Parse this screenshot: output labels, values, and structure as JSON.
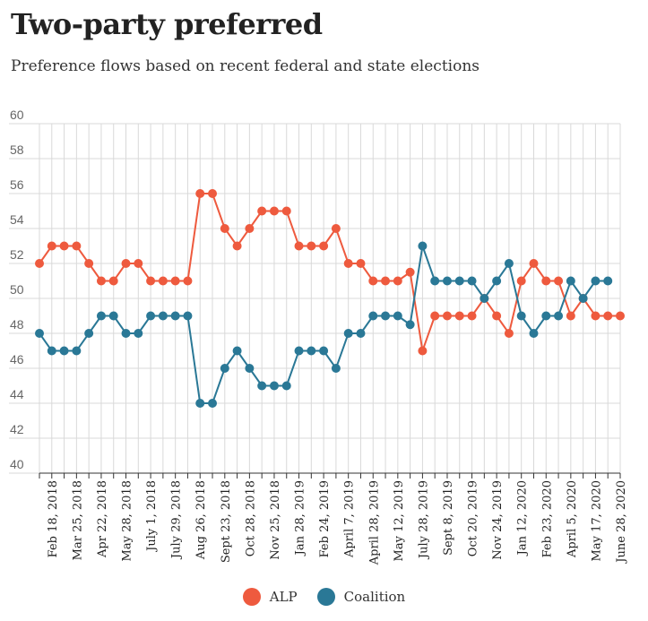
{
  "header": {
    "title": "Two-party preferred",
    "subtitle": "Preference flows based on recent federal and state elections"
  },
  "colors": {
    "alp": "#ee5a3e",
    "coalition": "#2a7896",
    "grid": "#d9d9d9",
    "axis": "#333333"
  },
  "chart_data": {
    "type": "line",
    "title": "Two-party preferred",
    "subtitle": "Preference flows based on recent federal and state elections",
    "ylim": [
      40,
      60
    ],
    "yticks": [
      40,
      42,
      44,
      46,
      48,
      50,
      52,
      54,
      56,
      58,
      60
    ],
    "grid": true,
    "legend_position": "bottom-center",
    "categories": [
      "",
      "Feb 18, 2018",
      "",
      "Mar 25, 2018",
      "",
      "Apr 22, 2018",
      "",
      "May 28, 2018",
      "",
      "July 1, 2018",
      "",
      "July 29, 2018",
      "",
      "Aug 26, 2018",
      "",
      "Sept 23, 2018",
      "",
      "Oct 28, 2018",
      "",
      "Nov 25, 2018",
      "",
      "Jan 28, 2019",
      "",
      "Feb 24, 2019",
      "",
      "April 7, 2019",
      "",
      "April 28, 2019",
      "",
      "May 12, 2019",
      "",
      "July 28, 2019",
      "",
      "Sept 8, 2019",
      "",
      "Oct 20, 2019",
      "",
      "Nov 24, 2019",
      "",
      "Jan 12, 2020",
      "",
      "Feb 23, 2020",
      "",
      "April 5, 2020",
      "",
      "May 17, 2020",
      "",
      "June 28, 2020"
    ],
    "series": [
      {
        "name": "ALP",
        "color": "#ee5a3e",
        "values": [
          52,
          53,
          53,
          53,
          52,
          51,
          51,
          52,
          52,
          51,
          51,
          51,
          51,
          56,
          56,
          54,
          53,
          54,
          55,
          55,
          55,
          53,
          53,
          53,
          54,
          52,
          52,
          51,
          51,
          51,
          51.5,
          47,
          49,
          49,
          49,
          49,
          50,
          49,
          48,
          51,
          52,
          51,
          51,
          49,
          50,
          49,
          49,
          49
        ]
      },
      {
        "name": "Coalition",
        "color": "#2a7896",
        "values": [
          48,
          47,
          47,
          47,
          48,
          49,
          49,
          48,
          48,
          49,
          49,
          49,
          49,
          44,
          44,
          46,
          47,
          46,
          45,
          45,
          45,
          47,
          47,
          47,
          46,
          48,
          48,
          49,
          49,
          49,
          48.5,
          53,
          51,
          51,
          51,
          51,
          50,
          51,
          52,
          49,
          48,
          49,
          49,
          51,
          50,
          51,
          51,
          null
        ]
      }
    ]
  },
  "legend": {
    "alp_label": "ALP",
    "coalition_label": "Coalition"
  }
}
